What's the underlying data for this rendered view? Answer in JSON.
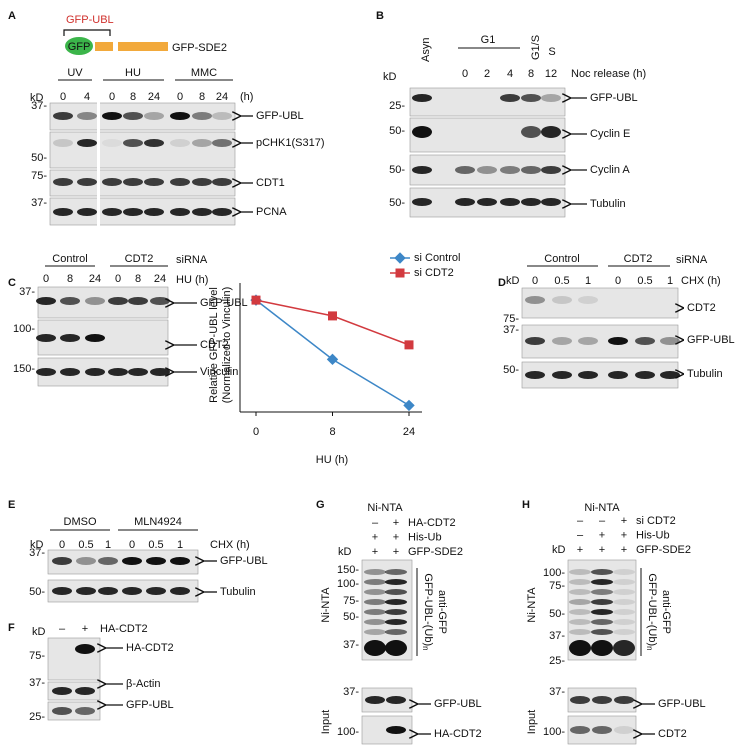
{
  "panels": {
    "A": {
      "letter": "A",
      "construct": {
        "ubl": "GFP-UBL",
        "gfp": "GFP",
        "name": "GFP-SDE2"
      },
      "kd": "kD",
      "groups": [
        "UV",
        "HU",
        "MMC"
      ],
      "lanes": [
        "0",
        "4",
        "0",
        "8",
        "24",
        "0",
        "8",
        "24"
      ],
      "unit": "(h)",
      "markers": [
        "37-",
        "50-",
        "75-",
        "37-"
      ],
      "blots": [
        "GFP-UBL",
        "pCHK1(S317)",
        "CDT1",
        "PCNA"
      ]
    },
    "B": {
      "letter": "B",
      "kd": "kD",
      "asyn": "Asyn",
      "g1": "G1",
      "g1s": "G1/S",
      "s": "S",
      "lanes": [
        "0",
        "2",
        "4",
        "8",
        "12"
      ],
      "release": "Noc release (h)",
      "markers": [
        "25-",
        "50-",
        "50-",
        "50-"
      ],
      "blots": [
        "GFP-UBL",
        "Cyclin E",
        "Cyclin A",
        "Tubulin"
      ]
    },
    "C": {
      "letter": "C",
      "groups": [
        "Control",
        "CDT2"
      ],
      "sirna": "siRNA",
      "lanes": [
        "0",
        "8",
        "24",
        "0",
        "8",
        "24"
      ],
      "treatment": "HU (h)",
      "markers": [
        "37-",
        "100-",
        "150-"
      ],
      "blots": [
        "GFP-UBL",
        "CDT2",
        "Vinculin"
      ]
    },
    "D": {
      "letter": "D",
      "groups": [
        "Control",
        "CDT2"
      ],
      "sirna": "siRNA",
      "kd": "kD",
      "lanes": [
        "0",
        "0.5",
        "1",
        "0",
        "0.5",
        "1"
      ],
      "treatment": "CHX (h)",
      "markers": [
        "75-",
        "37-",
        "50-"
      ],
      "blots": [
        "CDT2",
        "GFP-UBL",
        "Tubulin"
      ]
    },
    "E": {
      "letter": "E",
      "groups": [
        "DMSO",
        "MLN4924"
      ],
      "kd": "kD",
      "lanes": [
        "0",
        "0.5",
        "1",
        "0",
        "0.5",
        "1"
      ],
      "treatment": "CHX (h)",
      "markers": [
        "37-",
        "50-"
      ],
      "blots": [
        "GFP-UBL",
        "Tubulin"
      ]
    },
    "F": {
      "letter": "F",
      "kd": "kD",
      "conditions": [
        "–",
        "+"
      ],
      "treatment": "HA-CDT2",
      "markers": [
        "75-",
        "37-",
        "25-"
      ],
      "blots": [
        "HA-CDT2",
        "β-Actin",
        "GFP-UBL"
      ]
    },
    "G": {
      "letter": "G",
      "header": "Ni-NTA",
      "kd": "kD",
      "rows": [
        {
          "signs": [
            "–",
            "+"
          ],
          "label": "HA-CDT2"
        },
        {
          "signs": [
            "+",
            "+"
          ],
          "label": "His-Ub"
        },
        {
          "signs": [
            "+",
            "+"
          ],
          "label": "GFP-SDE2"
        }
      ],
      "pulldown": "Ni-NTA",
      "markers": [
        "150-",
        "100-",
        "75-",
        "50-",
        "37-"
      ],
      "smear": "GFP-UBL-(Ub)",
      "smear_sub": "n",
      "antibody": "anti-GFP",
      "input": "Input",
      "input_markers": [
        "37-",
        "100-"
      ],
      "input_blots": [
        "GFP-UBL",
        "HA-CDT2"
      ]
    },
    "H": {
      "letter": "H",
      "header": "Ni-NTA",
      "kd": "kD",
      "rows": [
        {
          "signs": [
            "–",
            "–",
            "+"
          ],
          "label": "si CDT2"
        },
        {
          "signs": [
            "–",
            "+",
            "+"
          ],
          "label": "His-Ub"
        },
        {
          "signs": [
            "+",
            "+",
            "+"
          ],
          "label": "GFP-SDE2"
        }
      ],
      "pulldown": "Ni-NTA",
      "markers": [
        "100-",
        "75-",
        "50-",
        "37-",
        "25-"
      ],
      "smear": "GFP-UBL-(Ub)",
      "smear_sub": "n",
      "antibody": "anti-GFP",
      "input": "Input",
      "input_markers": [
        "37-",
        "100-"
      ],
      "input_blots": [
        "GFP-UBL",
        "CDT2"
      ]
    }
  },
  "chart_data": {
    "type": "line",
    "categories": [
      "0",
      "8",
      "24"
    ],
    "xlabel": "HU (h)",
    "ylabel": [
      "Relative GFP-UBL level",
      "(Normalized to Vinculin)"
    ],
    "ylim": [
      0.15,
      1.13
    ],
    "series": [
      {
        "name": "si Control",
        "color": "#3d87c7",
        "marker": "diamond",
        "values": [
          1,
          0.55,
          0.2
        ]
      },
      {
        "name": "si CDT2",
        "color": "#d23a3f",
        "marker": "square",
        "values": [
          1,
          0.88,
          0.66
        ]
      }
    ]
  }
}
